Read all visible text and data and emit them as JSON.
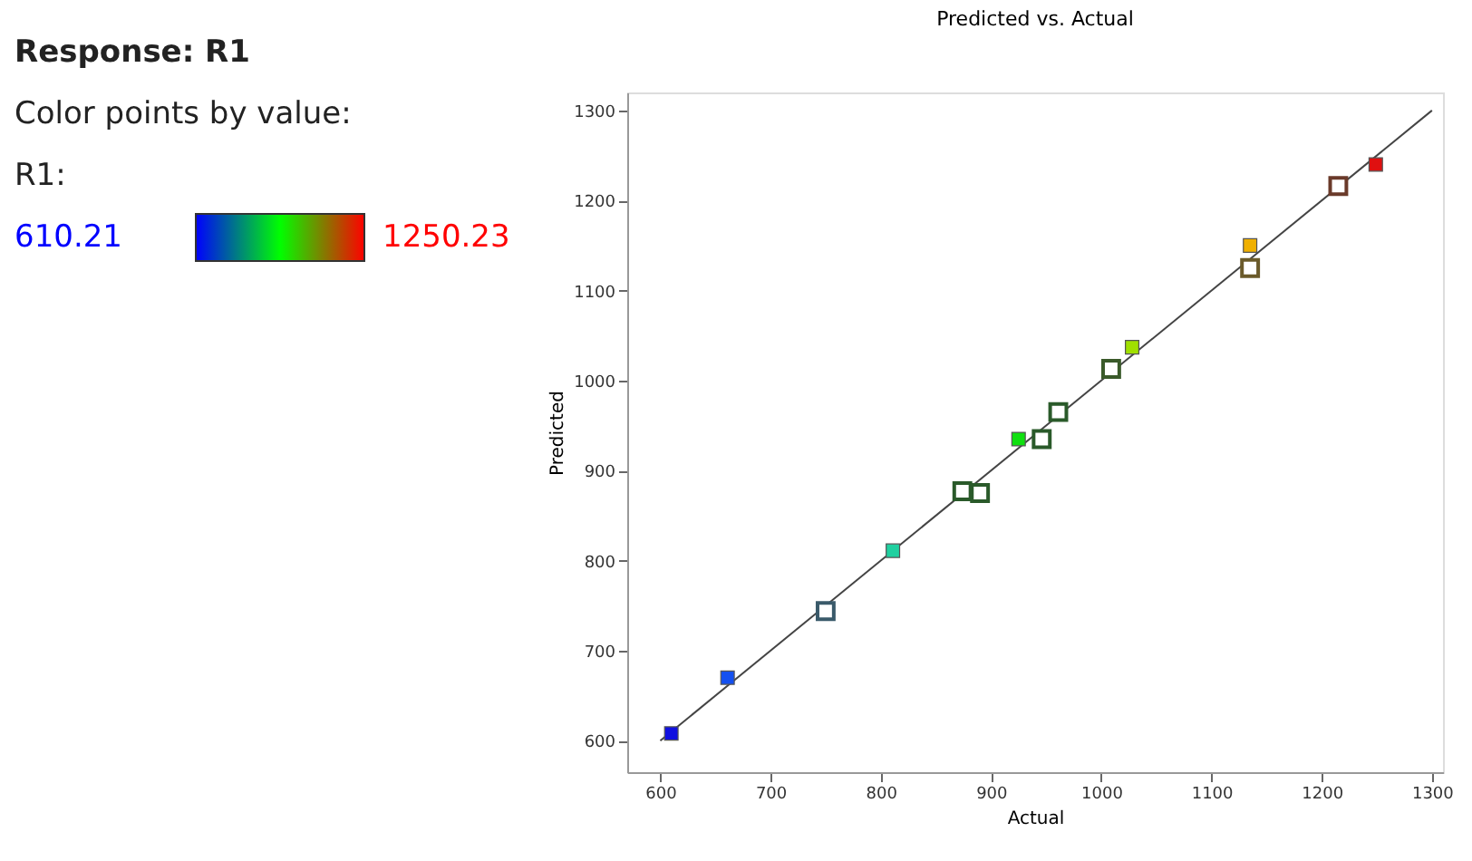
{
  "chart_data": {
    "type": "scatter",
    "title": "Predicted vs. Actual",
    "xlabel": "Actual",
    "ylabel": "Predicted",
    "annotations": [
      "Response: R1",
      "Color points by value:",
      "610.21",
      "1250.23"
    ],
    "legend_title": "R1:",
    "xlim": [
      570,
      1310
    ],
    "ylim": [
      565,
      1320
    ],
    "xticks": [
      600,
      700,
      800,
      900,
      1000,
      1100,
      1200,
      1300
    ],
    "yticks": [
      600,
      700,
      800,
      900,
      1000,
      1100,
      1200,
      1300
    ],
    "grid": false,
    "series": [
      {
        "type": "scatter",
        "marker": "square",
        "x": [
          610,
          661,
          811,
          925,
          1028,
          1135,
          1249
        ],
        "values": [
          608,
          670,
          811,
          935,
          1037,
          1150,
          1240
        ],
        "colors": [
          "#1010e0",
          "#1450f0",
          "#20d0a0",
          "#10e010",
          "#a0e000",
          "#f0b000",
          "#e01010"
        ]
      },
      {
        "type": "scatter",
        "marker": "square",
        "color": "#ffffff",
        "x": [
          750,
          874,
          890,
          946,
          961,
          1009,
          1135,
          1215
        ],
        "values": [
          744,
          877,
          875,
          935,
          965,
          1013,
          1125,
          1216
        ],
        "colors": [
          "#3a5a6a",
          "#2a5a2a",
          "#2a5a2a",
          "#2a5a2a",
          "#2a5a2a",
          "#3a5a2a",
          "#6a5a2a",
          "#6a3a2a"
        ]
      },
      {
        "type": "line",
        "marker": "none",
        "color": "#444444",
        "line_style": "solid",
        "x": [
          600,
          1300
        ],
        "values": [
          600,
          1300
        ]
      }
    ]
  }
}
